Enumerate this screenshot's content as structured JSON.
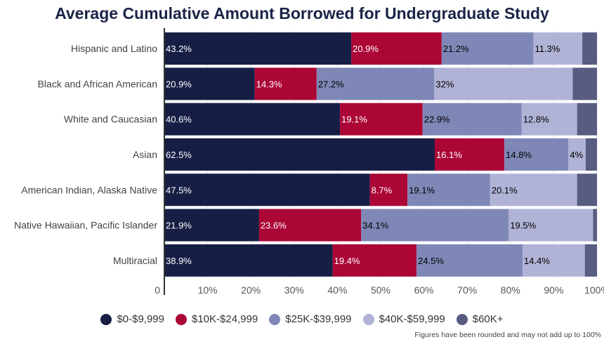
{
  "chart_data": {
    "type": "bar",
    "orientation": "horizontal",
    "stacked": true,
    "title": "Average Cumulative Amount Borrowed for Undergraduate Study",
    "categories": [
      "Hispanic and Latino",
      "Black and African American",
      "White and Caucasian",
      "Asian",
      "American Indian, Alaska Native",
      "Native Hawaiian, Pacific Islander",
      "Multiracial"
    ],
    "series": [
      {
        "name": "$0-$9,999",
        "color": "#171e45",
        "values": [
          43.2,
          20.9,
          40.6,
          62.5,
          47.5,
          21.9,
          38.9
        ],
        "labels": [
          "43.2%",
          "20.9%",
          "40.6%",
          "62.5%",
          "47.5%",
          "21.9%",
          "38.9%"
        ],
        "label_color": "#ffffff"
      },
      {
        "name": "$10K-$24,999",
        "color": "#ab0636",
        "values": [
          20.9,
          14.3,
          19.1,
          16.1,
          8.7,
          23.6,
          19.4
        ],
        "labels": [
          "20.9%",
          "14.3%",
          "19.1%",
          "16.1%",
          "8.7%",
          "23.6%",
          "19.4%"
        ],
        "label_color": "#ffffff"
      },
      {
        "name": "$25K-$39,999",
        "color": "#7f87b7",
        "values": [
          21.2,
          27.2,
          22.9,
          14.8,
          19.1,
          34.1,
          24.5
        ],
        "labels": [
          "21.2%",
          "27.2%",
          "22.9%",
          "14.8%",
          "19.1%",
          "34.1%",
          "24.5%"
        ],
        "label_color": "#000000"
      },
      {
        "name": "$40K-$59,999",
        "color": "#b0b3d6",
        "values": [
          11.3,
          32.0,
          12.8,
          4.0,
          20.1,
          19.5,
          14.4
        ],
        "labels": [
          "11.3%",
          "32%",
          "12.8%",
          "4%",
          "20.1%",
          "19.5%",
          "14.4%"
        ],
        "label_color": "#000000"
      },
      {
        "name": "$60K+",
        "color": "#575c80",
        "values": [
          3.4,
          5.6,
          4.6,
          2.6,
          4.6,
          0.9,
          2.8
        ],
        "labels": [
          "",
          "",
          "",
          "",
          "",
          "",
          ""
        ],
        "label_color": "#ffffff"
      }
    ],
    "x_ticks": [
      "0",
      "10%",
      "20%",
      "30%",
      "40%",
      "50%",
      "60%",
      "70%",
      "80%",
      "90%",
      "100%"
    ],
    "x_tick_values": [
      0,
      10,
      20,
      30,
      40,
      50,
      60,
      70,
      80,
      90,
      100
    ],
    "xlim": [
      0,
      100
    ],
    "grid": true,
    "legend_position": "bottom"
  },
  "footnote": "Figures have been rounded and may not add up to 100%"
}
